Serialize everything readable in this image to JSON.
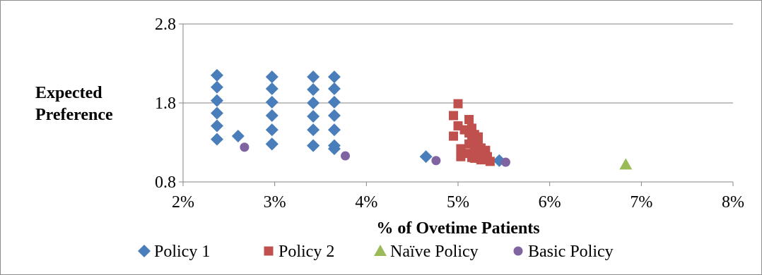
{
  "chart_data": {
    "type": "scatter",
    "xlabel": "% of Ovetime Patients",
    "ylabel_lines": [
      "Expected",
      "Preference"
    ],
    "xlim": [
      0.02,
      0.08
    ],
    "ylim": [
      0.8,
      2.8
    ],
    "x_ticks": [
      {
        "value": 0.02,
        "label": "2%"
      },
      {
        "value": 0.03,
        "label": "3%"
      },
      {
        "value": 0.04,
        "label": "4%"
      },
      {
        "value": 0.05,
        "label": "5%"
      },
      {
        "value": 0.06,
        "label": "6%"
      },
      {
        "value": 0.07,
        "label": "7%"
      },
      {
        "value": 0.08,
        "label": "8%"
      }
    ],
    "y_ticks": [
      {
        "value": 0.8,
        "label": "0.8"
      },
      {
        "value": 1.8,
        "label": "1.8"
      },
      {
        "value": 2.8,
        "label": "2.8"
      }
    ],
    "grid": "horizontal",
    "legend": "bottom",
    "series": [
      {
        "name": "Policy 1",
        "marker": "diamond",
        "color": "#4a7ebb",
        "x": [
          0.0237,
          0.0237,
          0.0237,
          0.0237,
          0.0237,
          0.0237,
          0.026,
          0.0297,
          0.0297,
          0.0297,
          0.0297,
          0.0297,
          0.0297,
          0.0297,
          0.0342,
          0.0342,
          0.0342,
          0.0342,
          0.0342,
          0.0342,
          0.0342,
          0.0365,
          0.0365,
          0.0365,
          0.0365,
          0.0365,
          0.0365,
          0.0365,
          0.0465,
          0.0545
        ],
        "y": [
          2.15,
          2.0,
          1.83,
          1.67,
          1.51,
          1.34,
          1.38,
          2.13,
          1.98,
          1.81,
          1.64,
          1.46,
          1.28,
          1.28,
          2.13,
          1.97,
          1.8,
          1.63,
          1.46,
          1.26,
          1.26,
          2.13,
          1.98,
          1.81,
          1.64,
          1.46,
          1.26,
          1.22,
          1.12,
          1.07
        ]
      },
      {
        "name": "Policy 2",
        "marker": "square",
        "color": "#c0504d",
        "x": [
          0.05,
          0.0495,
          0.0495,
          0.05,
          0.0503,
          0.0503,
          0.0507,
          0.0512,
          0.0512,
          0.0512,
          0.0512,
          0.0515,
          0.0515,
          0.0515,
          0.0518,
          0.0518,
          0.0518,
          0.0518,
          0.0522,
          0.0522,
          0.0522,
          0.0522,
          0.0525,
          0.0525,
          0.0528,
          0.0528,
          0.053,
          0.0532,
          0.0535
        ],
        "y": [
          1.79,
          1.64,
          1.38,
          1.51,
          1.12,
          1.22,
          1.46,
          1.59,
          1.42,
          1.28,
          1.16,
          1.48,
          1.33,
          1.11,
          1.4,
          1.26,
          1.18,
          1.1,
          1.37,
          1.29,
          1.21,
          1.14,
          1.23,
          1.08,
          1.17,
          1.09,
          1.2,
          1.12,
          1.06
        ]
      },
      {
        "name": "Naïve Policy",
        "marker": "triangle",
        "color": "#9bbb59",
        "x": [
          0.0683
        ],
        "y": [
          1.02
        ]
      },
      {
        "name": "Basic Policy",
        "marker": "circle",
        "color": "#8064a2",
        "x": [
          0.0267,
          0.0377,
          0.0476,
          0.0552
        ],
        "y": [
          1.24,
          1.13,
          1.07,
          1.05
        ]
      }
    ]
  }
}
